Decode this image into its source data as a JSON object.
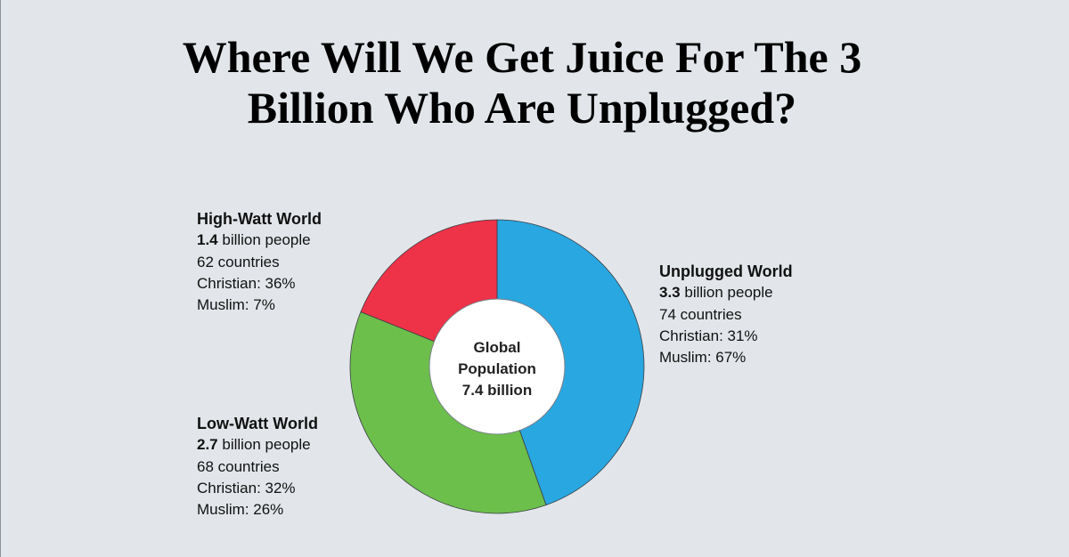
{
  "title": {
    "line1": "Where Will We Get Juice For The 3",
    "line2": "Billion Who Are Unplugged?"
  },
  "chart_data": {
    "type": "pie",
    "style": "donut",
    "title": "Where Will We Get Juice For The 3 Billion Who Are Unplugged?",
    "center_label": [
      "Global",
      "Population",
      "7.4 billion"
    ],
    "total": 7.4,
    "unit": "billion people",
    "slices": [
      {
        "name": "Unplugged World",
        "value": 3.3,
        "countries": 74,
        "christian_pct": 31,
        "muslim_pct": 67,
        "color": "#29a7e1"
      },
      {
        "name": "Low-Watt World",
        "value": 2.7,
        "countries": 68,
        "christian_pct": 32,
        "muslim_pct": 26,
        "color": "#6cbf4b"
      },
      {
        "name": "High-Watt World",
        "value": 1.4,
        "countries": 62,
        "christian_pct": 36,
        "muslim_pct": 7,
        "color": "#ee3248"
      }
    ]
  },
  "labels": {
    "high": {
      "head": "High-Watt World",
      "people_value": "1.4",
      "people_text": " billion people",
      "countries": "62 countries",
      "christian": "Christian: 36%",
      "muslim": "Muslim: 7%"
    },
    "low": {
      "head": "Low-Watt World",
      "people_value": "2.7",
      "people_text": " billion people",
      "countries": "68 countries",
      "christian": "Christian: 32%",
      "muslim": "Muslim: 26%"
    },
    "unplugged": {
      "head": "Unplugged World",
      "people_value": "3.3",
      "people_text": " billion people",
      "countries": "74 countries",
      "christian": "Christian: 31%",
      "muslim": "Muslim: 67%"
    }
  }
}
